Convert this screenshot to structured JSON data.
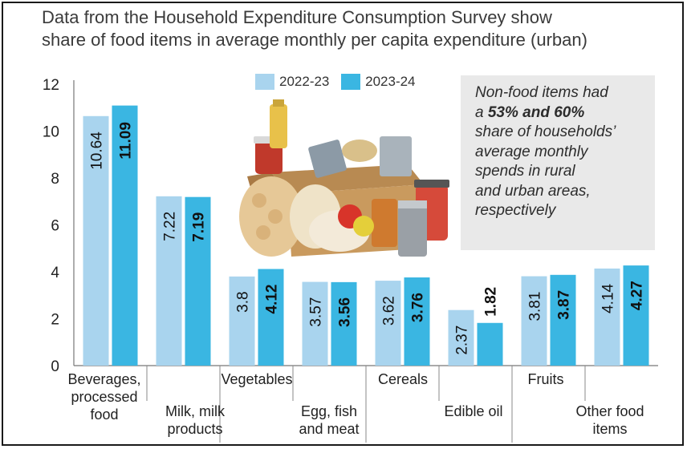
{
  "title": {
    "line1": "Data from the Household Expenditure Consumption Survey show",
    "line2": "share of food items in average monthly per capita expenditure (urban)"
  },
  "note": {
    "line1": "Non-food items had",
    "line2_prefix": "a ",
    "line2_bold": "53% and 60%",
    "line3": "share of households’",
    "line4": "average monthly",
    "line5": "spends in rural",
    "line6": "and urban areas,",
    "line7": "respectively"
  },
  "colors": {
    "series_2022": "#a9d4ee",
    "series_2023": "#3ab6e2",
    "note_bg": "#e9e9e9"
  },
  "illustration": "grocery-basket-image",
  "chart_data": {
    "type": "bar",
    "categories": [
      [
        "Beverages,",
        "processed",
        "food"
      ],
      [
        "Milk, milk",
        "products"
      ],
      [
        "Vegetables"
      ],
      [
        "Egg, fish",
        "and meat"
      ],
      [
        "Cereals"
      ],
      [
        "Edible oil"
      ],
      [
        "Fruits"
      ],
      [
        "Other food",
        "items"
      ]
    ],
    "series": [
      {
        "name": "2022-23",
        "values": [
          10.64,
          7.22,
          3.8,
          3.57,
          3.62,
          2.37,
          3.81,
          4.14
        ]
      },
      {
        "name": "2023-24",
        "values": [
          11.09,
          7.19,
          4.12,
          3.56,
          3.76,
          1.82,
          3.87,
          4.27
        ]
      }
    ],
    "ylim": [
      0,
      12
    ],
    "yticks": [
      "0",
      "2",
      "4",
      "6",
      "8",
      "10",
      "12"
    ],
    "xlabel": "",
    "ylabel": "",
    "legend_position": "top-center",
    "grid": false
  }
}
